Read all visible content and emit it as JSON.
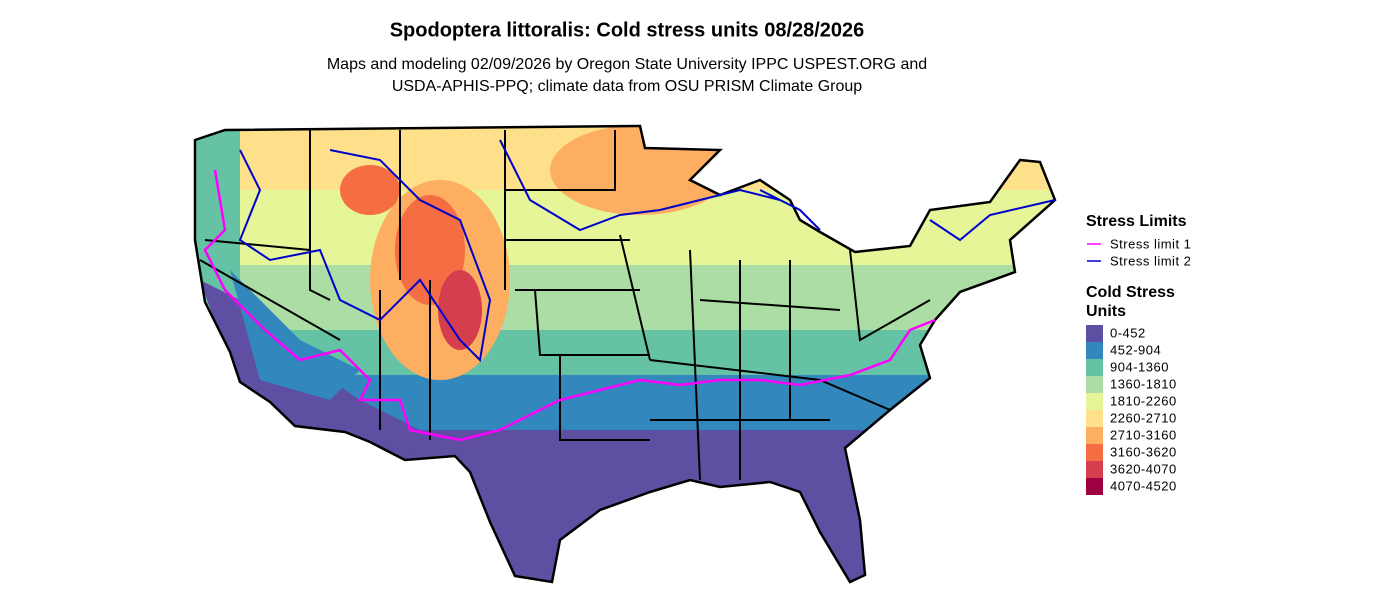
{
  "title": "Spodoptera littoralis: Cold stress units 08/28/2026",
  "subtitle": [
    "Maps and modeling 02/09/2026 by Oregon State University IPPC USPEST.ORG and",
    "USDA-APHIS-PPQ; climate data from OSU PRISM Climate Group"
  ],
  "legend_limits": {
    "title": "Stress Limits",
    "items": [
      {
        "label": "Stress limit 1",
        "color": "#ff00ff"
      },
      {
        "label": "Stress limit 2",
        "color": "#0000cd"
      }
    ]
  },
  "legend_units": {
    "title": [
      "Cold Stress",
      "Units"
    ],
    "items": [
      {
        "label": "0-452",
        "color": "#5e4fa2"
      },
      {
        "label": "452-904",
        "color": "#3288bd"
      },
      {
        "label": "904-1360",
        "color": "#66c2a5"
      },
      {
        "label": "1360-1810",
        "color": "#abdda4"
      },
      {
        "label": "1810-2260",
        "color": "#e6f598"
      },
      {
        "label": "2260-2710",
        "color": "#fee08b"
      },
      {
        "label": "2710-3160",
        "color": "#fdae61"
      },
      {
        "label": "3160-3620",
        "color": "#f46d43"
      },
      {
        "label": "3620-4070",
        "color": "#d53e4f"
      },
      {
        "label": "4070-4520",
        "color": "#9e0142"
      }
    ]
  }
}
